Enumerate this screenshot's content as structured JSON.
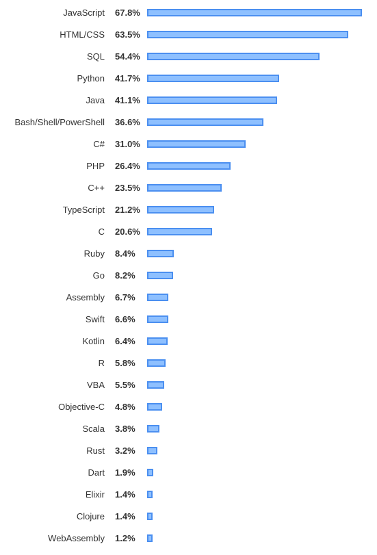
{
  "chart_data": {
    "type": "bar",
    "orientation": "horizontal",
    "categories": [
      "JavaScript",
      "HTML/CSS",
      "SQL",
      "Python",
      "Java",
      "Bash/Shell/PowerShell",
      "C#",
      "PHP",
      "C++",
      "TypeScript",
      "C",
      "Ruby",
      "Go",
      "Assembly",
      "Swift",
      "Kotlin",
      "R",
      "VBA",
      "Objective-C",
      "Scala",
      "Rust",
      "Dart",
      "Elixir",
      "Clojure",
      "WebAssembly"
    ],
    "values": [
      67.8,
      63.5,
      54.4,
      41.7,
      41.1,
      36.6,
      31.0,
      26.4,
      23.5,
      21.2,
      20.6,
      8.4,
      8.2,
      6.7,
      6.6,
      6.4,
      5.8,
      5.5,
      4.8,
      3.8,
      3.2,
      1.9,
      1.4,
      1.4,
      1.2
    ],
    "value_labels": [
      "67.8%",
      "63.5%",
      "54.4%",
      "41.7%",
      "41.1%",
      "36.6%",
      "31.0%",
      "26.4%",
      "23.5%",
      "21.2%",
      "20.6%",
      "8.4%",
      "8.2%",
      "6.7%",
      "6.6%",
      "6.4%",
      "5.8%",
      "5.5%",
      "4.8%",
      "3.8%",
      "3.2%",
      "1.9%",
      "1.4%",
      "1.4%",
      "1.2%"
    ],
    "xlim": [
      0,
      67.8
    ],
    "grid": false,
    "legend": "none",
    "colors": {
      "bar_fill": "#8ec0ff",
      "bar_border": "#4b8ff0",
      "text": "#333333"
    }
  }
}
